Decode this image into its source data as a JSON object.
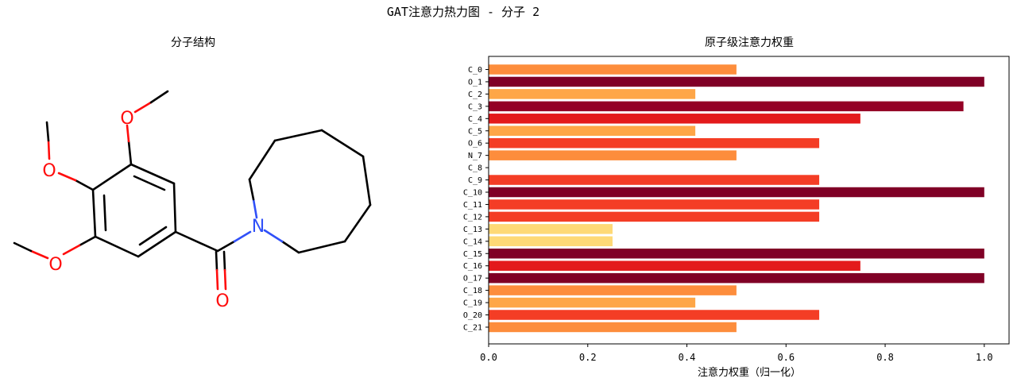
{
  "figure": {
    "suptitle": "GAT注意力热力图 - 分子 2"
  },
  "molecule_panel": {
    "title": "分子结构",
    "atom_labels": {
      "o1": "O",
      "o2": "O",
      "o3": "O",
      "o4": "O",
      "n1": "N"
    },
    "colors": {
      "bond": "#000000",
      "oxygen": "#ff0d0d",
      "nitrogen": "#3050f8"
    }
  },
  "chart_data": {
    "type": "bar",
    "orientation": "horizontal",
    "title": "原子级注意力权重",
    "xlabel": "注意力权重（归一化）",
    "ylabel": "",
    "xlim": [
      0,
      1.05
    ],
    "xticks": [
      0.0,
      0.2,
      0.4,
      0.6,
      0.8,
      1.0
    ],
    "xtick_labels": [
      "0.0",
      "0.2",
      "0.4",
      "0.6",
      "0.8",
      "1.0"
    ],
    "grid": false,
    "legend": "none",
    "categories": [
      "C_0",
      "O_1",
      "C_2",
      "C_3",
      "C_4",
      "C_5",
      "O_6",
      "N_7",
      "C_8",
      "C_9",
      "C_10",
      "C_11",
      "C_12",
      "C_13",
      "C_14",
      "C_15",
      "C_16",
      "O_17",
      "C_18",
      "C_19",
      "O_20",
      "C_21"
    ],
    "values": [
      0.5,
      1.0,
      0.417,
      0.958,
      0.75,
      0.417,
      0.667,
      0.5,
      0.0,
      0.667,
      1.0,
      0.667,
      0.667,
      0.25,
      0.25,
      1.0,
      0.75,
      1.0,
      0.5,
      0.417,
      0.667,
      0.5
    ],
    "colormap": "YlOrRd",
    "colormap_stops": [
      "#ffffcc",
      "#ffeda0",
      "#fed976",
      "#feb24c",
      "#fd8d3c",
      "#fc4e2a",
      "#e31a1c",
      "#bd0026",
      "#800026"
    ]
  }
}
